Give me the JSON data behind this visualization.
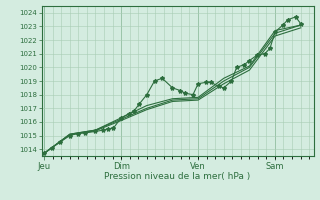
{
  "xlabel": "Pression niveau de la mer( hPa )",
  "bg_color": "#d4ece0",
  "plot_bg_color": "#d4ece0",
  "grid_color": "#a8ccb4",
  "line_color": "#2d6e3e",
  "marker_color": "#2d6e3e",
  "ylim": [
    1013.5,
    1024.5
  ],
  "yticks": [
    1014,
    1015,
    1016,
    1017,
    1018,
    1019,
    1020,
    1021,
    1022,
    1023,
    1024
  ],
  "day_labels": [
    "Jeu",
    "Dim",
    "Ven",
    "Sam"
  ],
  "day_positions": [
    0,
    3,
    6,
    9
  ],
  "series": [
    [
      0.0,
      1013.7,
      0.3,
      1014.1,
      0.6,
      1014.5,
      1.0,
      1015.0,
      1.3,
      1015.15,
      1.6,
      1015.2,
      2.0,
      1015.3,
      2.3,
      1015.4,
      2.5,
      1015.5,
      2.7,
      1015.55,
      3.0,
      1016.3,
      3.3,
      1016.6,
      3.5,
      1016.8,
      3.7,
      1017.3,
      4.0,
      1018.0,
      4.3,
      1019.0,
      4.6,
      1019.2,
      5.0,
      1018.5,
      5.3,
      1018.3,
      5.5,
      1018.1,
      5.8,
      1018.0,
      6.0,
      1018.8,
      6.3,
      1018.9,
      6.5,
      1018.9,
      6.8,
      1018.6,
      7.0,
      1018.5,
      7.3,
      1019.0,
      7.5,
      1020.0,
      7.8,
      1020.2,
      8.0,
      1020.5,
      8.3,
      1020.9,
      8.6,
      1021.0,
      8.8,
      1021.4,
      9.0,
      1022.6,
      9.3,
      1023.1,
      9.5,
      1023.5,
      9.8,
      1023.7,
      10.0,
      1023.2
    ],
    [
      0.0,
      1013.7,
      1.0,
      1015.1,
      2.0,
      1015.4,
      3.0,
      1016.3,
      4.0,
      1017.2,
      5.0,
      1017.7,
      6.0,
      1017.8,
      7.0,
      1019.2,
      8.0,
      1020.1,
      9.0,
      1022.7,
      10.0,
      1023.1
    ],
    [
      0.0,
      1013.7,
      1.0,
      1015.1,
      2.0,
      1015.4,
      3.0,
      1016.2,
      4.0,
      1017.0,
      5.0,
      1017.6,
      6.0,
      1017.7,
      7.0,
      1019.0,
      8.0,
      1020.0,
      9.0,
      1022.5,
      10.0,
      1023.1
    ],
    [
      0.0,
      1013.7,
      1.0,
      1015.05,
      2.0,
      1015.35,
      3.0,
      1016.1,
      4.0,
      1016.9,
      5.0,
      1017.5,
      6.0,
      1017.6,
      7.0,
      1018.8,
      8.0,
      1019.8,
      9.0,
      1022.3,
      10.0,
      1022.9
    ]
  ],
  "xlim": [
    -0.1,
    10.5
  ],
  "minor_xtick_step": 0.333,
  "figsize": [
    3.2,
    2.0
  ],
  "dpi": 100
}
